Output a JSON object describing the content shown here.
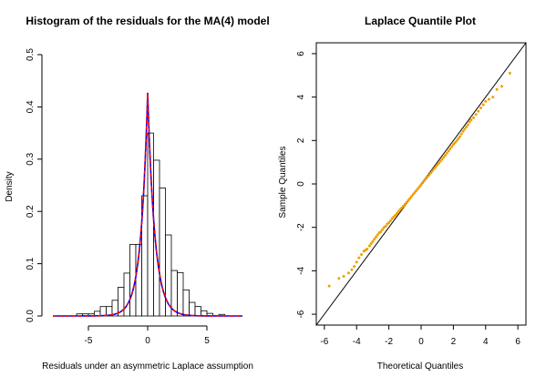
{
  "chart_data": [
    {
      "type": "bar",
      "title": "Histogram of the residuals for the MA(4) model",
      "xlabel": "Residuals under an asymmetric Laplace assumption",
      "ylabel": "Density",
      "xlim": [
        -8,
        8
      ],
      "ylim": [
        0,
        0.5
      ],
      "xticks": [
        -5,
        0,
        5
      ],
      "yticks": [
        0.0,
        0.1,
        0.2,
        0.3,
        0.4,
        0.5
      ],
      "bin_width": 0.5,
      "bins": [
        {
          "x0": -6.0,
          "density": 0.004
        },
        {
          "x0": -5.5,
          "density": 0.004
        },
        {
          "x0": -5.0,
          "density": 0.004
        },
        {
          "x0": -4.5,
          "density": 0.009
        },
        {
          "x0": -4.0,
          "density": 0.018
        },
        {
          "x0": -3.5,
          "density": 0.018
        },
        {
          "x0": -3.0,
          "density": 0.03
        },
        {
          "x0": -2.5,
          "density": 0.055
        },
        {
          "x0": -2.0,
          "density": 0.082
        },
        {
          "x0": -1.5,
          "density": 0.137
        },
        {
          "x0": -1.0,
          "density": 0.137
        },
        {
          "x0": -0.5,
          "density": 0.23
        },
        {
          "x0": 0.0,
          "density": 0.35
        },
        {
          "x0": 0.5,
          "density": 0.298
        },
        {
          "x0": 1.0,
          "density": 0.245
        },
        {
          "x0": 1.5,
          "density": 0.155
        },
        {
          "x0": 2.0,
          "density": 0.087
        },
        {
          "x0": 2.5,
          "density": 0.083
        },
        {
          "x0": 3.0,
          "density": 0.05
        },
        {
          "x0": 3.5,
          "density": 0.026
        },
        {
          "x0": 4.0,
          "density": 0.018
        },
        {
          "x0": 4.5,
          "density": 0.01
        },
        {
          "x0": 5.0,
          "density": 0.005
        },
        {
          "x0": 6.0,
          "density": 0.003
        }
      ],
      "curves": [
        {
          "color": "#0000ff",
          "style": "solid",
          "mode": 0.0,
          "peak": 0.427,
          "scale_left": 1.15,
          "scale_right": 1.2
        },
        {
          "color": "#ff0000",
          "style": "dashed",
          "mode": 0.0,
          "peak": 0.425,
          "scale_left": 1.16,
          "scale_right": 1.21
        }
      ]
    },
    {
      "type": "scatter",
      "title": "Laplace Quantile Plot",
      "xlabel": "Theoretical Quantiles",
      "ylabel": "Sample Quantiles",
      "xlim": [
        -6.5,
        6.5
      ],
      "ylim": [
        -6.5,
        6.5
      ],
      "xticks": [
        -6,
        -4,
        -2,
        0,
        2,
        4,
        6
      ],
      "yticks": [
        -6,
        -4,
        -2,
        0,
        2,
        4,
        6
      ],
      "point_color": "#f0a000",
      "reference_line": {
        "slope": 1,
        "intercept": 0,
        "color": "#000000"
      },
      "points": [
        [
          -5.7,
          -4.7
        ],
        [
          -5.1,
          -4.35
        ],
        [
          -4.8,
          -4.25
        ],
        [
          -4.5,
          -4.1
        ],
        [
          -4.3,
          -3.95
        ],
        [
          -4.15,
          -3.8
        ],
        [
          -4.0,
          -3.6
        ],
        [
          -3.85,
          -3.4
        ],
        [
          -3.7,
          -3.25
        ],
        [
          -3.55,
          -3.1
        ],
        [
          -3.45,
          -3.05
        ],
        [
          -3.35,
          -3.0
        ],
        [
          -3.2,
          -2.85
        ],
        [
          -3.1,
          -2.75
        ],
        [
          -3.0,
          -2.65
        ],
        [
          -2.9,
          -2.55
        ],
        [
          -2.8,
          -2.45
        ],
        [
          -2.7,
          -2.35
        ],
        [
          -2.6,
          -2.25
        ],
        [
          -2.5,
          -2.2
        ],
        [
          -2.4,
          -2.1
        ],
        [
          -2.3,
          -2.0
        ],
        [
          -2.2,
          -1.95
        ],
        [
          -2.1,
          -1.85
        ],
        [
          -2.0,
          -1.78
        ],
        [
          -1.9,
          -1.7
        ],
        [
          -1.8,
          -1.6
        ],
        [
          -1.7,
          -1.52
        ],
        [
          -1.6,
          -1.44
        ],
        [
          -1.5,
          -1.36
        ],
        [
          -1.4,
          -1.27
        ],
        [
          -1.3,
          -1.18
        ],
        [
          -1.2,
          -1.1
        ],
        [
          -1.1,
          -1.02
        ],
        [
          -1.0,
          -0.94
        ],
        [
          -0.9,
          -0.85
        ],
        [
          -0.8,
          -0.76
        ],
        [
          -0.7,
          -0.67
        ],
        [
          -0.6,
          -0.58
        ],
        [
          -0.5,
          -0.49
        ],
        [
          -0.4,
          -0.4
        ],
        [
          -0.3,
          -0.31
        ],
        [
          -0.2,
          -0.22
        ],
        [
          -0.1,
          -0.13
        ],
        [
          0.0,
          -0.04
        ],
        [
          0.1,
          0.06
        ],
        [
          0.2,
          0.15
        ],
        [
          0.3,
          0.24
        ],
        [
          0.4,
          0.33
        ],
        [
          0.5,
          0.42
        ],
        [
          0.6,
          0.51
        ],
        [
          0.7,
          0.6
        ],
        [
          0.8,
          0.69
        ],
        [
          0.9,
          0.78
        ],
        [
          1.0,
          0.87
        ],
        [
          1.1,
          0.96
        ],
        [
          1.2,
          1.05
        ],
        [
          1.3,
          1.14
        ],
        [
          1.4,
          1.23
        ],
        [
          1.5,
          1.32
        ],
        [
          1.6,
          1.42
        ],
        [
          1.7,
          1.52
        ],
        [
          1.8,
          1.62
        ],
        [
          1.9,
          1.72
        ],
        [
          2.0,
          1.82
        ],
        [
          2.1,
          1.9
        ],
        [
          2.2,
          1.98
        ],
        [
          2.3,
          2.08
        ],
        [
          2.4,
          2.18
        ],
        [
          2.5,
          2.3
        ],
        [
          2.6,
          2.42
        ],
        [
          2.7,
          2.52
        ],
        [
          2.8,
          2.62
        ],
        [
          2.9,
          2.72
        ],
        [
          3.0,
          2.85
        ],
        [
          3.1,
          2.95
        ],
        [
          3.25,
          3.05
        ],
        [
          3.4,
          3.2
        ],
        [
          3.55,
          3.35
        ],
        [
          3.7,
          3.5
        ],
        [
          3.85,
          3.65
        ],
        [
          4.0,
          3.8
        ],
        [
          4.2,
          3.9
        ],
        [
          4.45,
          4.0
        ],
        [
          4.7,
          4.35
        ],
        [
          5.0,
          4.5
        ],
        [
          5.5,
          5.1
        ]
      ]
    }
  ]
}
